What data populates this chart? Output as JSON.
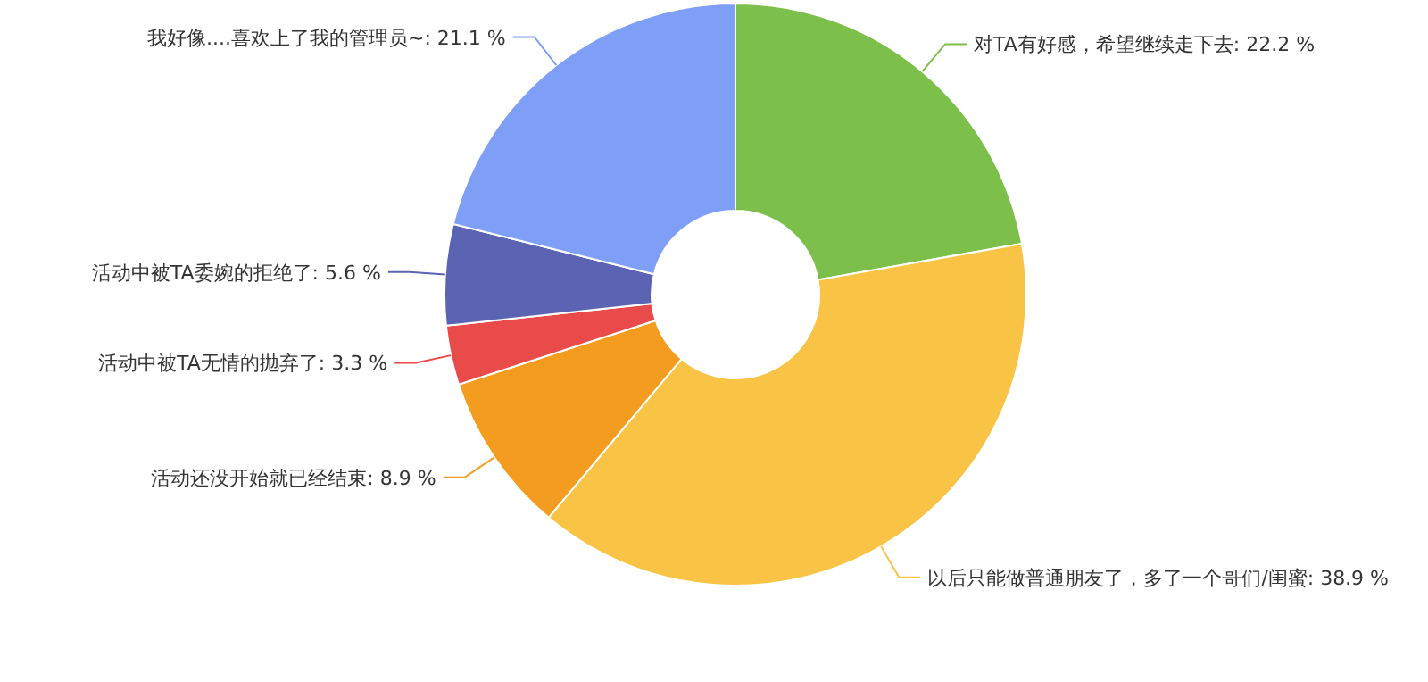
{
  "chart_data": {
    "type": "donut",
    "categories": [
      "对TA有好感，希望继续走下去",
      "以后只能做普通朋友了，多了一个哥们/闺蜜",
      "活动还没开始就已经结束",
      "活动中被TA无情的抛弃了",
      "活动中被TA委婉的拒绝了",
      "我好像....喜欢上了我的管理员~"
    ],
    "values": [
      22.2,
      38.9,
      8.9,
      3.3,
      5.6,
      21.1
    ],
    "colors": [
      "#7cc04b",
      "#f9c446",
      "#f49c1f",
      "#e94a4a",
      "#5b63b3",
      "#7f9ef5"
    ],
    "value_labels": [
      "22.2 %",
      "38.9 %",
      "8.9 %",
      "3.3 %",
      "5.6 %",
      "21.1 %"
    ]
  }
}
